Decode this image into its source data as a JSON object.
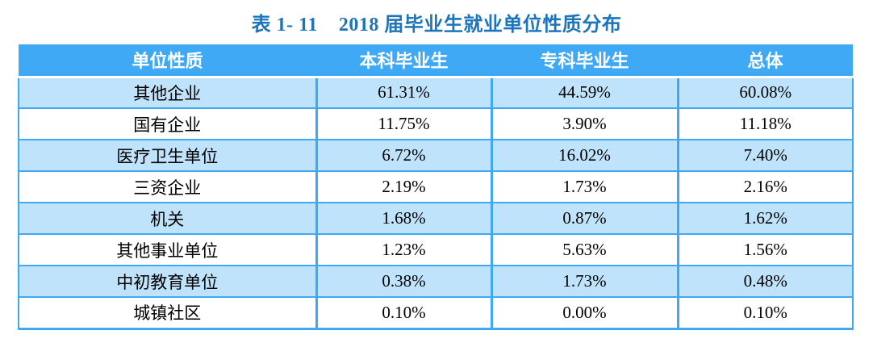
{
  "title": "表 1- 11    2018 届毕业生就业单位性质分布",
  "table": {
    "columns": [
      "单位性质",
      "本科毕业生",
      "专科毕业生",
      "总体"
    ],
    "rows": [
      {
        "label": "其他企业",
        "values": [
          "61.31%",
          "44.59%",
          "60.08%"
        ]
      },
      {
        "label": "国有企业",
        "values": [
          "11.75%",
          "3.90%",
          "11.18%"
        ]
      },
      {
        "label": "医疗卫生单位",
        "values": [
          "6.72%",
          "16.02%",
          "7.40%"
        ]
      },
      {
        "label": "三资企业",
        "values": [
          "2.19%",
          "1.73%",
          "2.16%"
        ]
      },
      {
        "label": "机关",
        "values": [
          "1.68%",
          "0.87%",
          "1.62%"
        ]
      },
      {
        "label": "其他事业单位",
        "values": [
          "1.23%",
          "5.63%",
          "1.56%"
        ]
      },
      {
        "label": "中初教育单位",
        "values": [
          "0.38%",
          "1.73%",
          "0.48%"
        ]
      },
      {
        "label": "城镇社区",
        "values": [
          "0.10%",
          "0.00%",
          "0.10%"
        ]
      }
    ]
  },
  "colors": {
    "title_text": "#1b75bc",
    "header_background": "#3fa9f5",
    "header_text": "#ffffff",
    "alt_row_background": "#bfe3fb",
    "grid_border": "#3fa9f5",
    "body_text": "#000000"
  }
}
